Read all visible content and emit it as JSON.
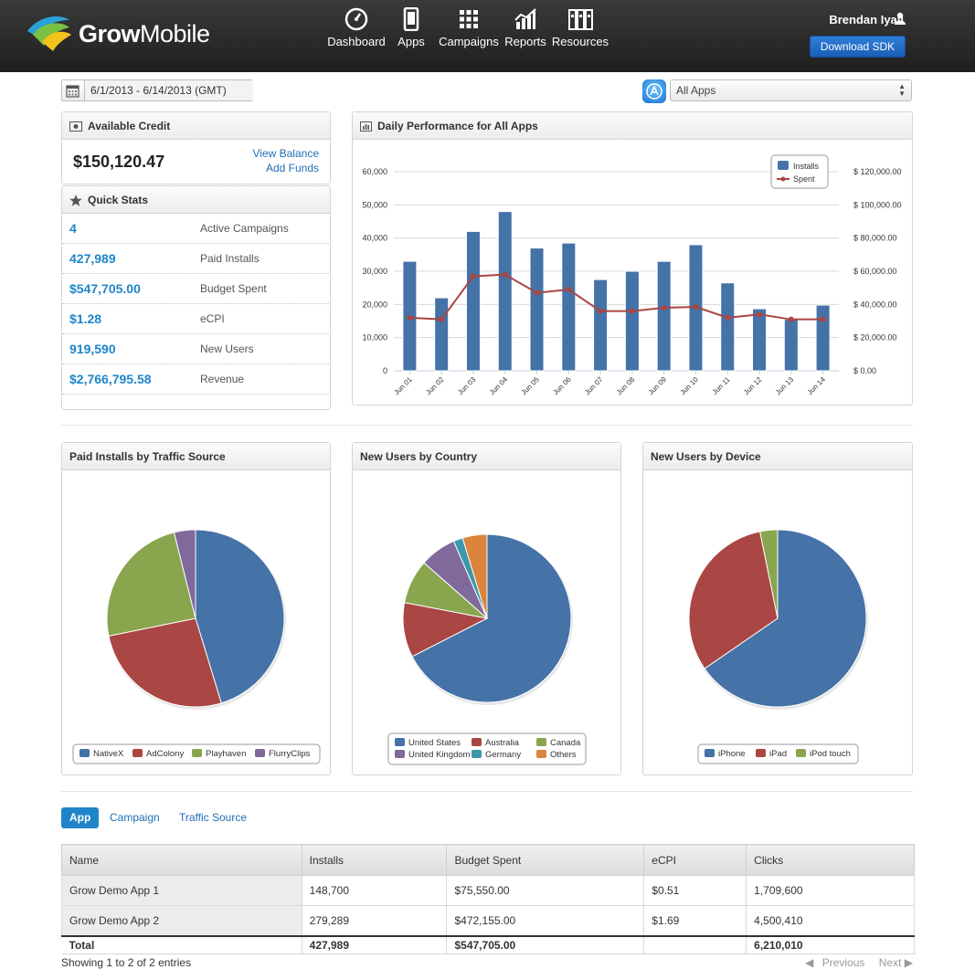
{
  "brand": {
    "name_bold": "Grow",
    "name_light": "Mobile"
  },
  "nav": [
    {
      "label": "Dashboard",
      "icon": "gauge-icon"
    },
    {
      "label": "Apps",
      "icon": "phone-icon"
    },
    {
      "label": "Campaigns",
      "icon": "grid-icon"
    },
    {
      "label": "Reports",
      "icon": "chart-icon"
    },
    {
      "label": "Resources",
      "icon": "binders-icon"
    }
  ],
  "user": {
    "name": "Brendan Iyall",
    "download_label": "Download SDK"
  },
  "filters": {
    "date_range": "6/1/2013 - 6/14/2013 (GMT)",
    "app_select": "All Apps"
  },
  "credit": {
    "title": "Available Credit",
    "amount": "$150,120.47",
    "view_balance": "View Balance",
    "add_funds": "Add Funds"
  },
  "quick_stats": {
    "title": "Quick Stats",
    "rows": [
      {
        "value": "4",
        "label": "Active Campaigns"
      },
      {
        "value": "427,989",
        "label": "Paid Installs"
      },
      {
        "value": "$547,705.00",
        "label": "Budget Spent"
      },
      {
        "value": "$1.28",
        "label": "eCPI"
      },
      {
        "value": "919,590",
        "label": "New Users"
      },
      {
        "value": "$2,766,795.58",
        "label": "Revenue"
      }
    ]
  },
  "colors": {
    "blue": "#4572a7",
    "red": "#aa4643",
    "green": "#89a54e",
    "purple": "#80699b",
    "teal": "#3d96ae",
    "orange": "#db843d",
    "link": "#1f6fb5",
    "accent": "#1f85c8"
  },
  "chart_data": [
    {
      "type": "bar",
      "title": "Daily Performance for All Apps",
      "categories": [
        "Jun 01",
        "Jun 02",
        "Jun 03",
        "Jun 04",
        "Jun 05",
        "Jun 06",
        "Jun 07",
        "Jun 08",
        "Jun 09",
        "Jun 10",
        "Jun 11",
        "Jun 12",
        "Jun 13",
        "Jun 14"
      ],
      "series": [
        {
          "name": "Installs",
          "type": "bar",
          "axis": "left",
          "values": [
            33000,
            22000,
            42000,
            48000,
            37000,
            38500,
            27500,
            30000,
            33000,
            38000,
            26500,
            18700,
            15500,
            19800
          ]
        },
        {
          "name": "Spent",
          "type": "line",
          "axis": "right",
          "values": [
            32000,
            31000,
            57000,
            58000,
            47000,
            49000,
            36000,
            36000,
            38000,
            38500,
            32000,
            34000,
            31000,
            31000
          ]
        }
      ],
      "ylim": [
        0,
        60000
      ],
      "yticks": [
        "0",
        "10,000",
        "20,000",
        "30,000",
        "40,000",
        "50,000",
        "60,000"
      ],
      "y2lim": [
        0,
        120000
      ],
      "y2ticks": [
        "$ 0.00",
        "$ 20,000.00",
        "$ 40,000.00",
        "$ 60,000.00",
        "$ 80,000.00",
        "$ 100,000.00",
        "$ 120,000.00"
      ],
      "grid": true,
      "legend": "top-right"
    },
    {
      "type": "pie",
      "title": "Paid Installs by Traffic Source",
      "labels": [
        "NativeX",
        "AdColony",
        "Playhaven",
        "FlurryClips"
      ],
      "values": [
        45.3,
        26.5,
        24.3,
        3.9
      ],
      "legend": "bottom"
    },
    {
      "type": "pie",
      "title": "New Users by Country",
      "labels": [
        "United States",
        "Australia",
        "Canada",
        "United Kingdom",
        "Germany",
        "Others"
      ],
      "values": [
        67.5,
        10.5,
        8.5,
        7.0,
        1.8,
        4.7
      ],
      "legend": "bottom"
    },
    {
      "type": "pie",
      "title": "New Users by Device",
      "labels": [
        "iPhone",
        "iPad",
        "iPod touch"
      ],
      "values": [
        65.4,
        31.4,
        3.2
      ],
      "legend": "bottom"
    }
  ],
  "tabs": [
    {
      "label": "App",
      "active": true
    },
    {
      "label": "Campaign",
      "active": false
    },
    {
      "label": "Traffic Source",
      "active": false
    }
  ],
  "table": {
    "columns": [
      "Name",
      "Installs",
      "Budget Spent",
      "eCPI",
      "Clicks"
    ],
    "rows": [
      [
        "Grow Demo App 1",
        "148,700",
        "$75,550.00",
        "$0.51",
        "1,709,600"
      ],
      [
        "Grow Demo App 2",
        "279,289",
        "$472,155.00",
        "$1.69",
        "4,500,410"
      ]
    ],
    "total": [
      "Total",
      "427,989",
      "$547,705.00",
      "",
      "6,210,010"
    ]
  },
  "pagination": {
    "showing": "Showing 1 to 2 of 2 entries",
    "previous": "Previous",
    "next": "Next"
  }
}
